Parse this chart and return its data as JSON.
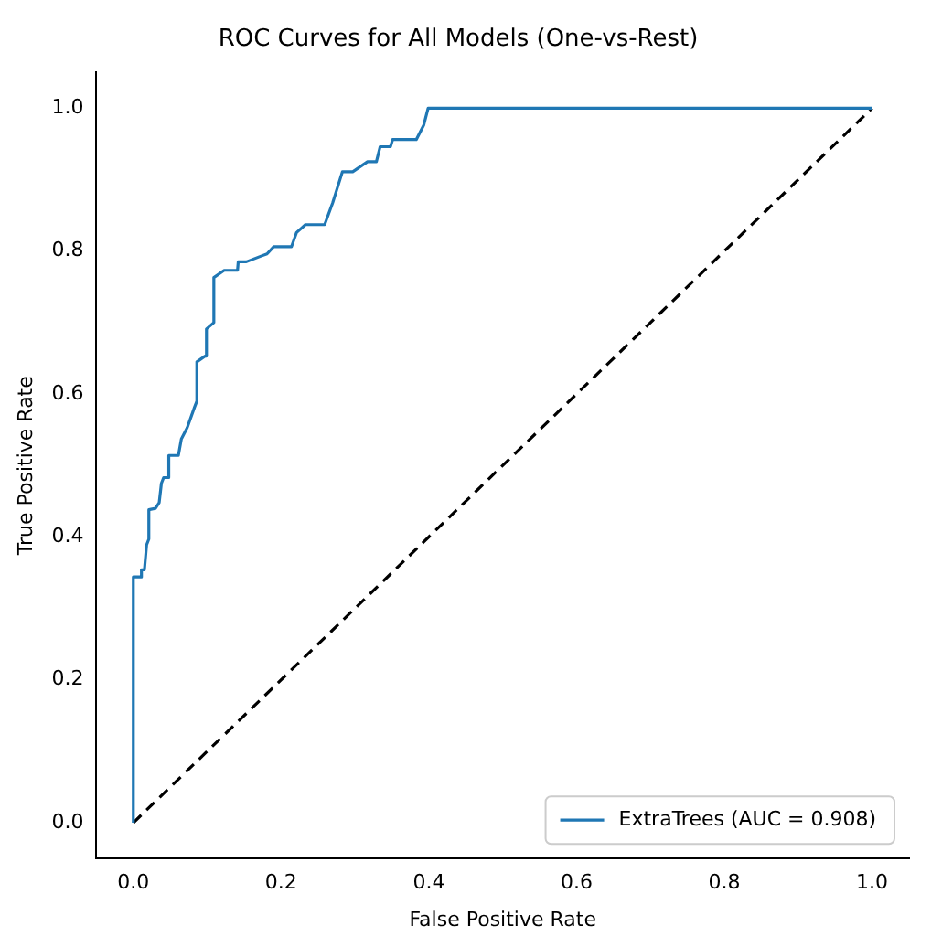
{
  "chart_data": {
    "type": "line",
    "title": "ROC Curves for All Models (One-vs-Rest)",
    "xlabel": "False Positive Rate",
    "ylabel": "True Positive Rate",
    "xlim": [
      -0.05,
      1.05
    ],
    "ylim": [
      -0.05,
      1.05
    ],
    "xticks": [
      {
        "value": 0,
        "label": "0.0"
      },
      {
        "value": 0.2,
        "label": "0.2"
      },
      {
        "value": 0.4,
        "label": "0.4"
      },
      {
        "value": 0.6,
        "label": "0.6"
      },
      {
        "value": 0.8,
        "label": "0.8"
      },
      {
        "value": 1,
        "label": "1.0"
      }
    ],
    "yticks": [
      {
        "value": 0,
        "label": "0.0"
      },
      {
        "value": 0.2,
        "label": "0.2"
      },
      {
        "value": 0.4,
        "label": "0.4"
      },
      {
        "value": 0.6,
        "label": "0.6"
      },
      {
        "value": 0.8,
        "label": "0.8"
      },
      {
        "value": 1,
        "label": "1.0"
      }
    ],
    "grid": false,
    "legend": "bottom right",
    "marker": "none",
    "series": [
      {
        "name": "ExtraTrees (AUC = 0.908)",
        "color": "#1f77b4",
        "line_style": "solid",
        "x": [
          0,
          0,
          0.011,
          0.011,
          0.015,
          0.018,
          0.021,
          0.021,
          0.03,
          0.035,
          0.038,
          0.041,
          0.048,
          0.048,
          0.061,
          0.065,
          0.073,
          0.083,
          0.086,
          0.086,
          0.097,
          0.099,
          0.109,
          0.109,
          0.123,
          0.141,
          0.142,
          0.153,
          0.173,
          0.181,
          0.19,
          0.214,
          0.221,
          0.233,
          0.259,
          0.27,
          0.283,
          0.297,
          0.317,
          0.329,
          0.334,
          0.348,
          0.351,
          0.383,
          0.393,
          0.399,
          1
        ],
        "values": [
          0,
          0.344,
          0.344,
          0.354,
          0.354,
          0.389,
          0.397,
          0.438,
          0.44,
          0.448,
          0.475,
          0.483,
          0.483,
          0.514,
          0.514,
          0.537,
          0.553,
          0.582,
          0.59,
          0.645,
          0.653,
          0.691,
          0.7,
          0.763,
          0.773,
          0.773,
          0.785,
          0.785,
          0.793,
          0.796,
          0.806,
          0.806,
          0.826,
          0.837,
          0.837,
          0.868,
          0.911,
          0.911,
          0.925,
          0.925,
          0.946,
          0.946,
          0.956,
          0.956,
          0.976,
          1,
          1
        ]
      },
      {
        "color": "#000000",
        "line_style": "dashed",
        "x": [
          0,
          1
        ],
        "values": [
          0,
          1
        ]
      }
    ]
  }
}
